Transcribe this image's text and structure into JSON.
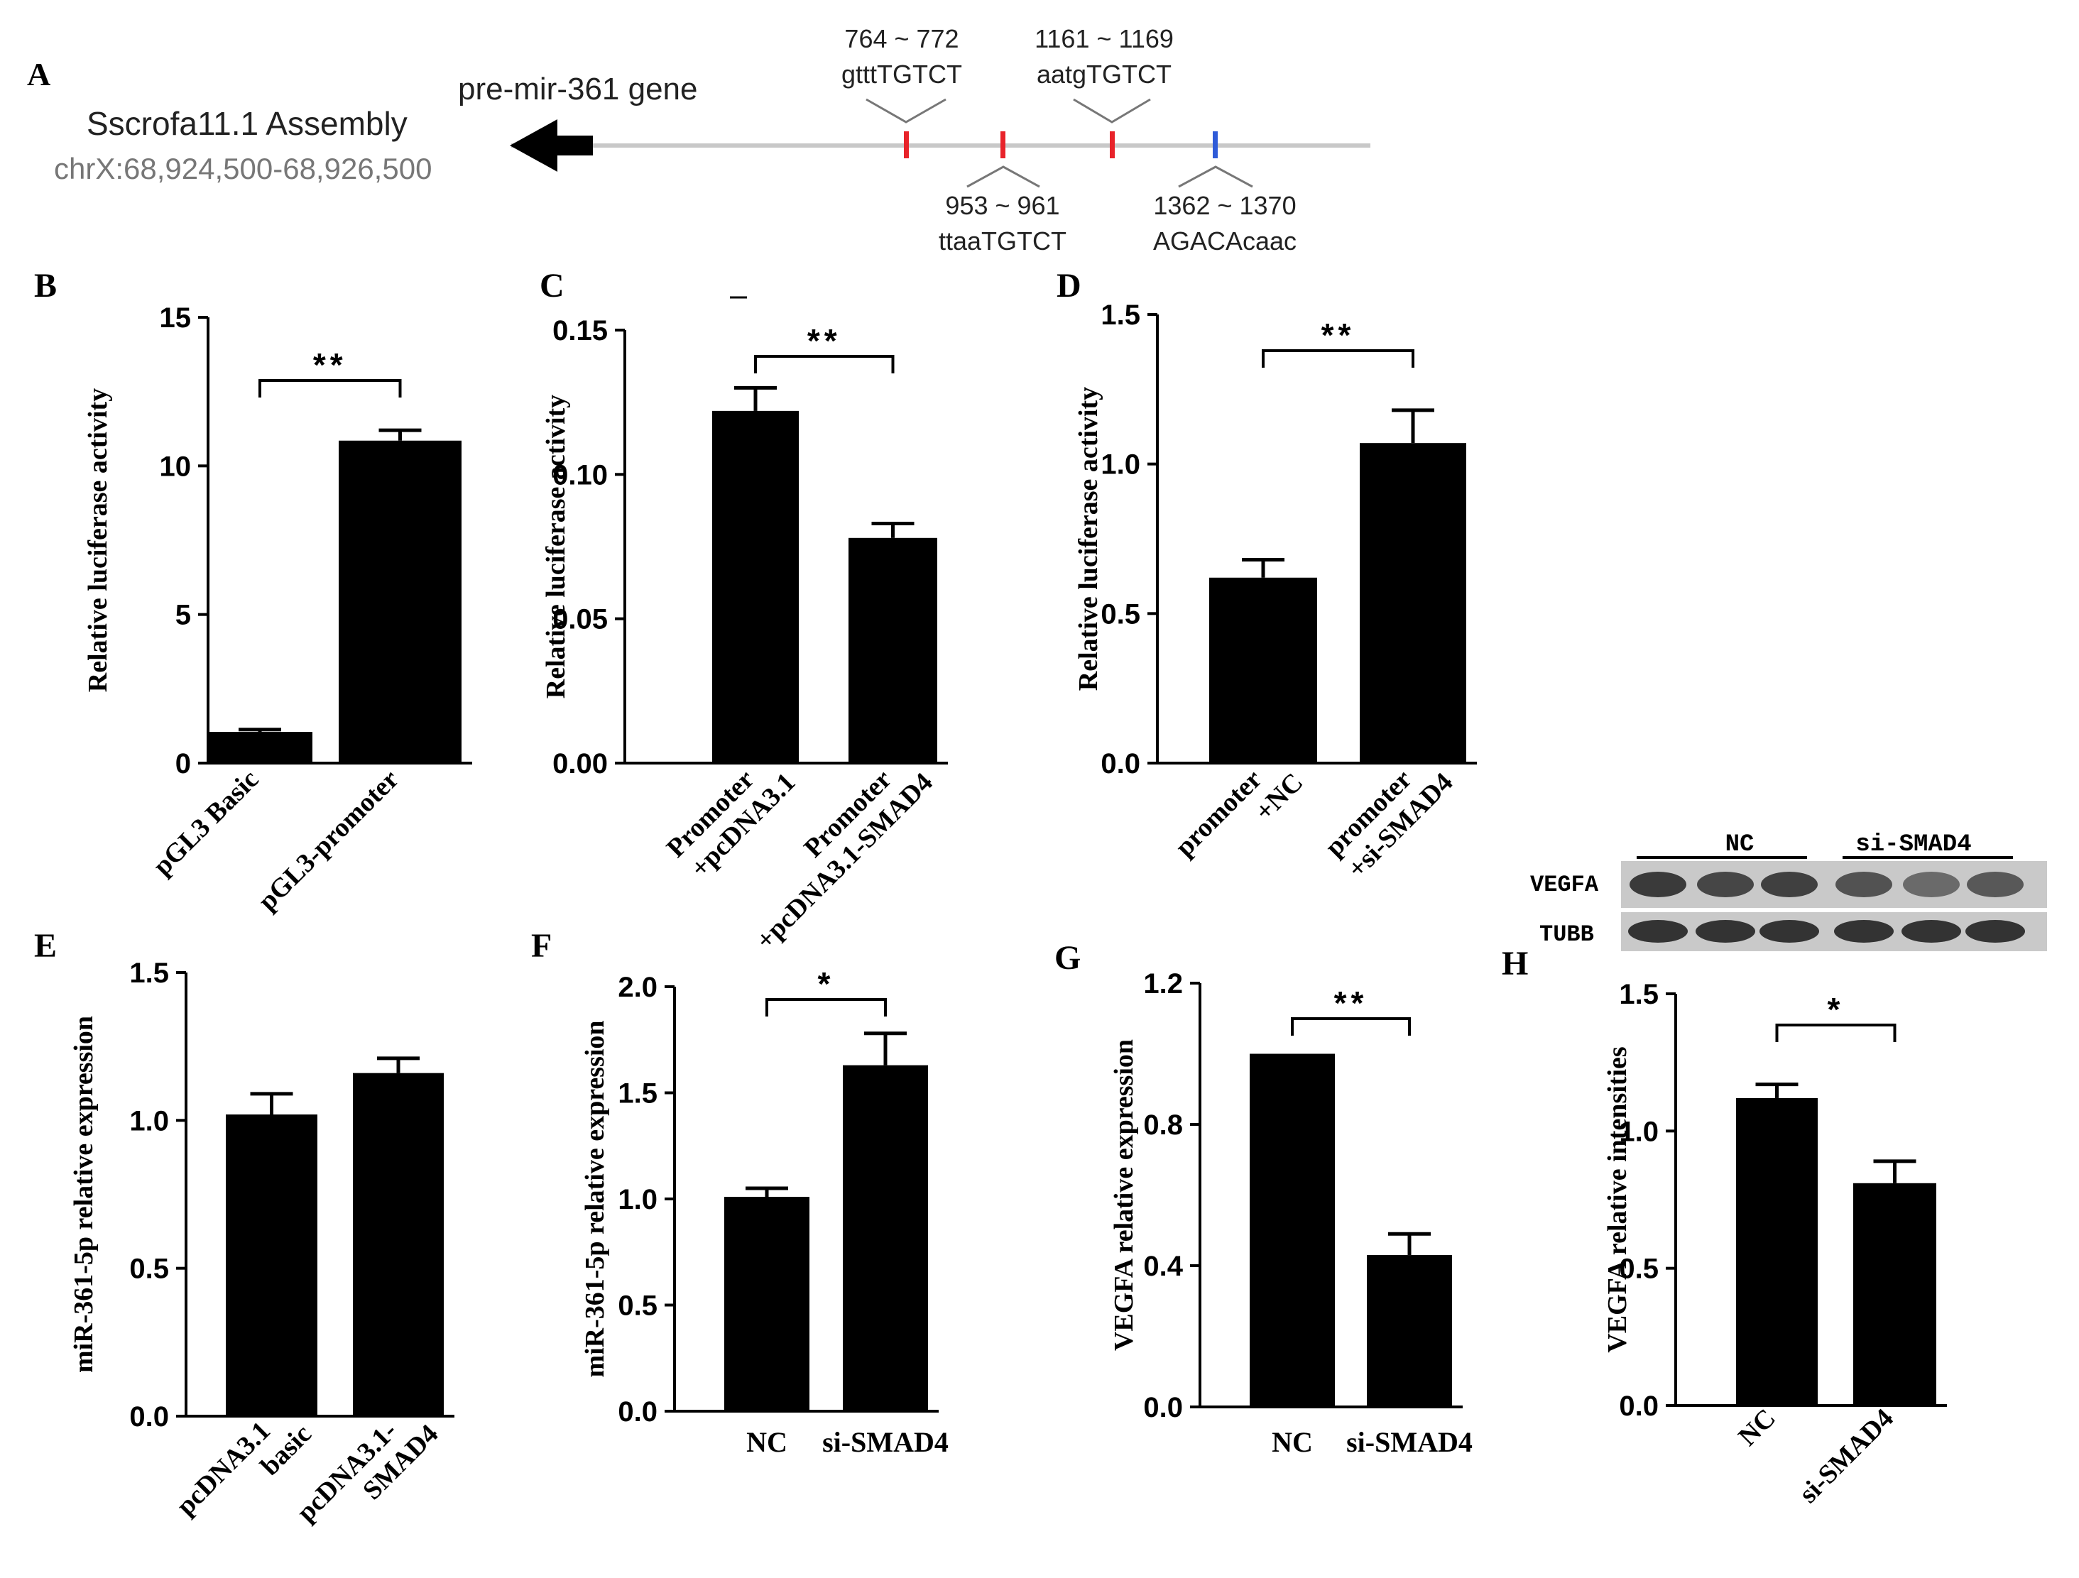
{
  "panel_a": {
    "letter": "A",
    "assembly_title": "Sscrofa11.1 Assembly",
    "assembly_coords": "chrX:68,924,500-68,926,500",
    "gene_label": "pre-mir-361 gene",
    "sites": [
      {
        "range": "764 ~ 772",
        "seq": "gtttTGTCT",
        "color": "#e8232a"
      },
      {
        "range": "953 ~ 961",
        "seq": "ttaaTGTCT",
        "color": "#e8232a"
      },
      {
        "range": "1161 ~ 1169",
        "seq": "aatgTGTCT",
        "color": "#e8232a"
      },
      {
        "range": "1362 ~ 1370",
        "seq": "AGACAcaac",
        "color": "#2f5bd8"
      }
    ]
  },
  "blot": {
    "group_labels": [
      "NC",
      "si-SMAD4"
    ],
    "row_labels": [
      "VEGFA",
      "TUBB"
    ],
    "vegfa_band_darkness": [
      0.85,
      0.75,
      0.8,
      0.65,
      0.45,
      0.6
    ]
  },
  "chart_data": [
    {
      "letter": "B",
      "type": "bar",
      "categories": [
        "pGL3 Basic",
        "pGL3-promoter"
      ],
      "values": [
        1.05,
        10.85
      ],
      "errors": [
        0.08,
        0.35
      ],
      "ylabel": "Relative luciferase activity",
      "ylim": [
        0,
        15
      ],
      "yticks": [
        "0",
        "5",
        "10",
        "15"
      ],
      "significance": "**"
    },
    {
      "letter": "C",
      "type": "bar",
      "categories": [
        "Promoter\n+pcDNA3.1",
        "Promoter\n+pcDNA3.1-SMAD4"
      ],
      "values": [
        0.122,
        0.078
      ],
      "errors": [
        0.008,
        0.005
      ],
      "ylabel": "Relative luciferase activity",
      "ylim": [
        0,
        0.15
      ],
      "yticks": [
        "0.00",
        "0.05",
        "0.10",
        "0.15"
      ],
      "significance": "**"
    },
    {
      "letter": "D",
      "type": "bar",
      "categories": [
        "promoter\n+NC",
        "promoter\n+si-SMAD4"
      ],
      "values": [
        0.62,
        1.07
      ],
      "errors": [
        0.06,
        0.11
      ],
      "ylabel": "Relative luciferase activity",
      "ylim": [
        0,
        1.5
      ],
      "yticks": [
        "0.0",
        "0.5",
        "1.0",
        "1.5"
      ],
      "significance": "**"
    },
    {
      "letter": "E",
      "type": "bar",
      "categories": [
        "pcDNA3.1\nbasic",
        "pcDNA3.1-\nSMAD4"
      ],
      "values": [
        1.02,
        1.16
      ],
      "errors": [
        0.07,
        0.05
      ],
      "ylabel": "miR-361-5p relative expression",
      "ylim": [
        0,
        1.5
      ],
      "yticks": [
        "0.0",
        "0.5",
        "1.0",
        "1.5"
      ],
      "significance": ""
    },
    {
      "letter": "F",
      "type": "bar",
      "categories": [
        "NC",
        "si-SMAD4"
      ],
      "values": [
        1.01,
        1.63
      ],
      "errors": [
        0.04,
        0.15
      ],
      "ylabel": "miR-361-5p relative expression",
      "ylim": [
        0,
        2.0
      ],
      "yticks": [
        "0.0",
        "0.5",
        "1.0",
        "1.5",
        "2.0"
      ],
      "significance": "*"
    },
    {
      "letter": "G",
      "type": "bar",
      "categories": [
        "NC",
        "si-SMAD4"
      ],
      "values": [
        1.0,
        0.43
      ],
      "errors": [
        0.0,
        0.06
      ],
      "ylabel": "VEGFA relative  expression",
      "ylim": [
        0,
        1.2
      ],
      "yticks": [
        "0.0",
        "0.4",
        "0.8",
        "1.2"
      ],
      "significance": "**"
    },
    {
      "letter": "H",
      "type": "bar",
      "categories": [
        "NC",
        "si-SMAD4"
      ],
      "values": [
        1.12,
        0.81
      ],
      "errors": [
        0.05,
        0.08
      ],
      "ylabel": "VEGFA relative intensities",
      "ylim": [
        0,
        1.5
      ],
      "yticks": [
        "0.0",
        "0.5",
        "1.0",
        "1.5"
      ],
      "significance": "*"
    }
  ]
}
